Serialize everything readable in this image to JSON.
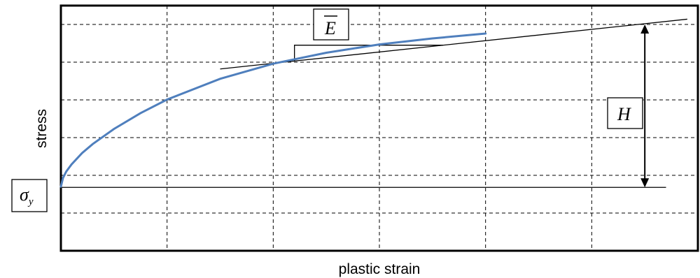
{
  "chart_data": {
    "type": "line",
    "title": "",
    "xlabel": "plastic strain",
    "ylabel": "stress",
    "xlim": [
      0,
      6
    ],
    "ylim": [
      0,
      6.5
    ],
    "grid": true,
    "x_gridlines": [
      1,
      2,
      3,
      4,
      5
    ],
    "y_gridlines": [
      1,
      2,
      3,
      4,
      5,
      6
    ],
    "series": [
      {
        "color": "#4f7fbd",
        "points": [
          [
            0.0,
            1.7
          ],
          [
            0.02,
            1.93
          ],
          [
            0.05,
            2.1
          ],
          [
            0.1,
            2.29
          ],
          [
            0.2,
            2.59
          ],
          [
            0.3,
            2.83
          ],
          [
            0.5,
            3.23
          ],
          [
            0.75,
            3.65
          ],
          [
            1.0,
            4.01
          ],
          [
            1.5,
            4.56
          ],
          [
            2.0,
            4.96
          ],
          [
            2.5,
            5.25
          ],
          [
            3.0,
            5.47
          ],
          [
            3.5,
            5.63
          ],
          [
            4.0,
            5.76
          ]
        ]
      }
    ],
    "annotations": {
      "yield_label": "σ",
      "yield_subscript": "y",
      "yield_level": 1.68,
      "yield_line_x": [
        0,
        5.7
      ],
      "tangent_label": "E",
      "tangent_line": {
        "x": [
          1.5,
          5.9
        ],
        "y": [
          4.82,
          6.14
        ]
      },
      "tangent_triangle": {
        "x": [
          2.2,
          3.6
        ],
        "y": [
          5.03,
          5.45
        ]
      },
      "hardening_label": "H",
      "hardening_arrow": {
        "x": 5.5,
        "y": [
          1.68,
          6.0
        ]
      }
    }
  }
}
